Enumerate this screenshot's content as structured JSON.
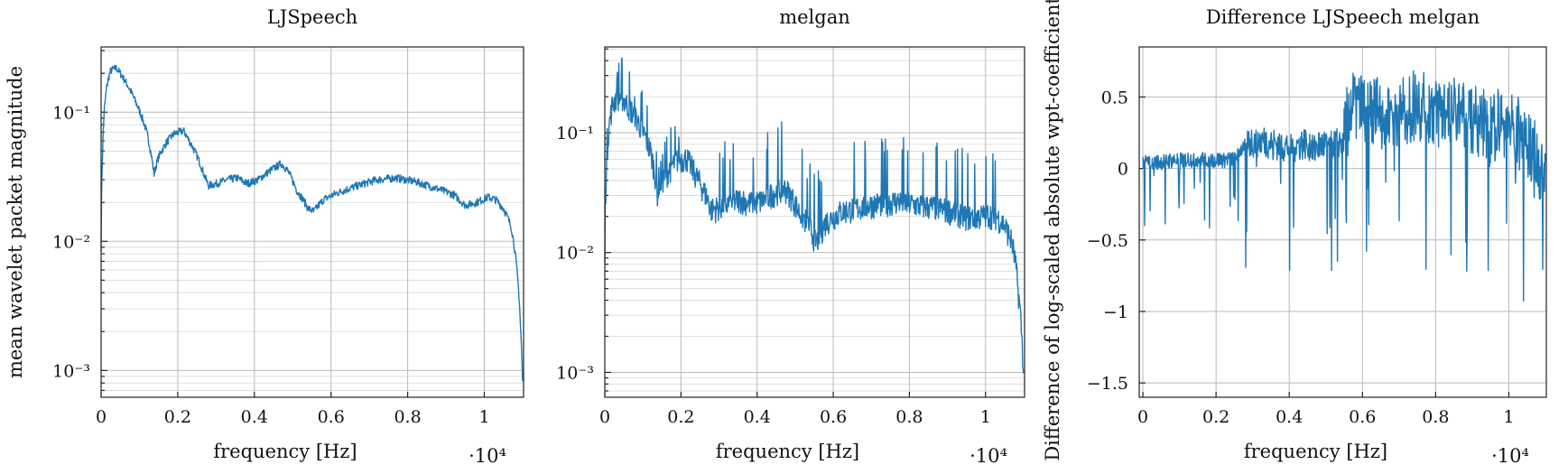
{
  "chart_data": [
    {
      "type": "line",
      "title": "LJSpeech",
      "xlabel": "frequency [Hz]",
      "ylabel": "mean wavelet packet magnitude",
      "yscale": "log",
      "xlim": [
        0,
        11025
      ],
      "ylim": [
        0.00062,
        0.32
      ],
      "x_ticks": [
        0,
        2000,
        4000,
        6000,
        8000,
        10000
      ],
      "x_tick_labels": [
        "0",
        "0.2",
        "0.4",
        "0.6",
        "0.8",
        "1"
      ],
      "x_multiplier": "·10⁴",
      "y_ticks": [
        0.001,
        0.01,
        0.1
      ],
      "y_tick_labels": [
        "10⁻³",
        "10⁻²",
        "10⁻¹"
      ],
      "series": [
        {
          "name": "LJSpeech",
          "x": [
            0,
            30,
            80,
            150,
            250,
            400,
            600,
            900,
            1200,
            1380,
            1500,
            1700,
            1900,
            2150,
            2300,
            2500,
            2700,
            2800,
            3000,
            3300,
            3550,
            3800,
            4100,
            4400,
            4700,
            4850,
            5100,
            5400,
            5550,
            5800,
            6200,
            6700,
            7200,
            7700,
            8200,
            8700,
            9200,
            9500,
            9800,
            10100,
            10300,
            10500,
            10700,
            10850,
            10950,
            11000
          ],
          "y": [
            0.009,
            0.04,
            0.1,
            0.16,
            0.21,
            0.22,
            0.18,
            0.12,
            0.068,
            0.033,
            0.045,
            0.058,
            0.068,
            0.072,
            0.06,
            0.046,
            0.032,
            0.027,
            0.028,
            0.03,
            0.031,
            0.028,
            0.03,
            0.035,
            0.04,
            0.036,
            0.025,
            0.018,
            0.017,
            0.021,
            0.024,
            0.027,
            0.03,
            0.031,
            0.029,
            0.026,
            0.023,
            0.019,
            0.02,
            0.022,
            0.021,
            0.018,
            0.013,
            0.006,
            0.002,
            0.0008
          ]
        }
      ]
    },
    {
      "type": "line",
      "title": "melgan",
      "xlabel": "frequency [Hz]",
      "ylabel": "",
      "yscale": "log",
      "xlim": [
        0,
        11025
      ],
      "ylim": [
        0.00062,
        0.52
      ],
      "x_ticks": [
        0,
        2000,
        4000,
        6000,
        8000,
        10000
      ],
      "x_tick_labels": [
        "0",
        "0.2",
        "0.4",
        "0.6",
        "0.8",
        "1"
      ],
      "x_multiplier": "·10⁴",
      "y_ticks": [
        0.001,
        0.01,
        0.1
      ],
      "y_tick_labels": [
        "10⁻³",
        "10⁻²",
        "10⁻¹"
      ],
      "series": [
        {
          "name": "melgan",
          "x": [
            0,
            50,
            120,
            200,
            300,
            450,
            600,
            900,
            1200,
            1380,
            1500,
            1700,
            1900,
            2150,
            2300,
            2500,
            2700,
            2800,
            3000,
            3300,
            3550,
            3800,
            4100,
            4400,
            4700,
            4850,
            5100,
            5400,
            5550,
            5800,
            6200,
            6700,
            7200,
            7700,
            8200,
            8700,
            9200,
            9500,
            9800,
            10100,
            10300,
            10500,
            10700,
            10850,
            10950,
            11000
          ],
          "y": [
            0.009,
            0.06,
            0.12,
            0.17,
            0.2,
            0.2,
            0.17,
            0.12,
            0.07,
            0.032,
            0.04,
            0.05,
            0.06,
            0.062,
            0.05,
            0.038,
            0.028,
            0.023,
            0.024,
            0.026,
            0.028,
            0.026,
            0.027,
            0.031,
            0.035,
            0.031,
            0.022,
            0.016,
            0.012,
            0.018,
            0.022,
            0.024,
            0.026,
            0.027,
            0.025,
            0.024,
            0.022,
            0.02,
            0.02,
            0.021,
            0.02,
            0.017,
            0.012,
            0.005,
            0.002,
            0.0009
          ]
        }
      ]
    },
    {
      "type": "line",
      "title": "Difference LJSpeech melgan",
      "xlabel": "frequency [Hz]",
      "ylabel": "Difference of log-scaled absolute wpt-coefficients",
      "yscale": "linear",
      "xlim": [
        -100,
        11025
      ],
      "ylim": [
        -1.6,
        0.85
      ],
      "x_ticks": [
        0,
        2000,
        4000,
        6000,
        8000,
        10000
      ],
      "x_tick_labels": [
        "0",
        "0.2",
        "0.4",
        "0.6",
        "0.8",
        "1"
      ],
      "x_multiplier": "·10⁴",
      "y_ticks": [
        -1.5,
        -1,
        -0.5,
        0,
        0.5
      ],
      "y_tick_labels": [
        "−1.5",
        "−1",
        "−0.5",
        "0",
        "0.5"
      ],
      "series": [
        {
          "name": "difference",
          "x": [
            0,
            500,
            1000,
            1500,
            2000,
            2500,
            2800,
            3200,
            3600,
            4000,
            4400,
            4800,
            5200,
            5500,
            5600,
            6000,
            6500,
            7000,
            7500,
            8000,
            8500,
            9000,
            9500,
            9800,
            10200,
            10600,
            11000
          ],
          "y": [
            0.05,
            0.05,
            0.06,
            0.07,
            0.06,
            0.07,
            0.18,
            0.2,
            0.18,
            0.15,
            0.18,
            0.16,
            0.18,
            0.2,
            0.45,
            0.4,
            0.38,
            0.42,
            0.45,
            0.42,
            0.38,
            0.35,
            0.3,
            0.32,
            0.28,
            0.15,
            -0.05
          ]
        }
      ]
    }
  ]
}
